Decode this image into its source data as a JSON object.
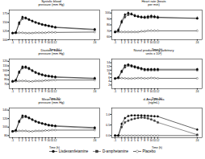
{
  "chart_data": [
    {
      "type": "line",
      "ylabel": "Systolic blood\npressure (mm Hg)",
      "xlabel": "Time (h)",
      "x": [
        -1,
        0,
        1,
        2,
        3,
        4,
        5,
        6,
        7,
        8,
        9,
        10,
        11,
        12,
        24
      ],
      "xlim": [
        -2,
        25.5
      ],
      "xticks": [
        -1,
        1,
        2,
        3,
        4,
        5,
        6,
        7,
        8,
        9,
        10,
        11,
        12,
        24
      ],
      "ylim": [
        100,
        185
      ],
      "yticks": [
        100,
        125,
        150,
        175
      ],
      "grid": false,
      "legend": "bottom",
      "series": [
        {
          "name": "Lisdexamfetamine",
          "color": "#000000",
          "marker": "circle",
          "line_style": "solid",
          "values": [
            119,
            120,
            149,
            165,
            163,
            158,
            154,
            150,
            147,
            144,
            142,
            140,
            138,
            136,
            130
          ],
          "yerr": 2.5
        },
        {
          "name": "D-amphetamine",
          "color": "#444444",
          "marker": "square",
          "line_style": "solid",
          "values": [
            119,
            121,
            145,
            160,
            161,
            157,
            153,
            149,
            146,
            143,
            141,
            139,
            137,
            135,
            128
          ],
          "yerr": 2.5
        },
        {
          "name": "Placebo",
          "color": "#000000",
          "marker": "open_circle",
          "line_style": "solid",
          "values": [
            119,
            119,
            120,
            120,
            119,
            119,
            119,
            120,
            120,
            120,
            120,
            121,
            121,
            121,
            122
          ],
          "yerr": 1.5
        }
      ]
    },
    {
      "type": "line",
      "ylabel": "Heart rate (beats\nper min)",
      "xlabel": "Time (h)",
      "x": [
        -1,
        0,
        1,
        2,
        3,
        4,
        5,
        6,
        7,
        8,
        9,
        10,
        11,
        12,
        24
      ],
      "xlim": [
        -2,
        25.5
      ],
      "xticks": [
        -1,
        1,
        2,
        3,
        4,
        5,
        6,
        7,
        8,
        9,
        10,
        11,
        12,
        24
      ],
      "ylim": [
        55,
        105
      ],
      "yticks": [
        60,
        70,
        80,
        90,
        100
      ],
      "grid": false,
      "legend": "bottom",
      "series": [
        {
          "name": "Lisdexamfetamine",
          "color": "#000000",
          "marker": "circle",
          "line_style": "solid",
          "values": [
            68,
            70,
            86,
            97,
            100,
            98,
            95,
            94,
            93,
            93,
            94,
            95,
            94,
            93,
            91
          ],
          "yerr": 2.5
        },
        {
          "name": "D-amphetamine",
          "color": "#444444",
          "marker": "square",
          "line_style": "solid",
          "values": [
            68,
            72,
            84,
            93,
            97,
            98,
            96,
            94,
            93,
            92,
            92,
            93,
            93,
            92,
            91
          ],
          "yerr": 2.5
        },
        {
          "name": "Placebo",
          "color": "#000000",
          "marker": "open_circle",
          "line_style": "solid",
          "values": [
            68,
            68,
            68,
            68,
            68,
            68,
            68,
            68,
            69,
            69,
            70,
            70,
            70,
            70,
            70
          ],
          "yerr": 1.5
        }
      ]
    },
    {
      "type": "line",
      "ylabel": "Diastolic blood\npressure (mm Hg)",
      "xlabel": "Time (h)",
      "x": [
        -1,
        0,
        1,
        2,
        3,
        4,
        5,
        6,
        7,
        8,
        9,
        10,
        11,
        12,
        24
      ],
      "xlim": [
        -2,
        25.5
      ],
      "xticks": [
        -1,
        1,
        2,
        3,
        4,
        5,
        6,
        7,
        8,
        9,
        10,
        11,
        12,
        24
      ],
      "ylim": [
        60,
        125
      ],
      "yticks": [
        70,
        80,
        90,
        100,
        110,
        120
      ],
      "grid": false,
      "legend": "bottom",
      "series": [
        {
          "name": "Lisdexamfetamine",
          "color": "#000000",
          "marker": "circle",
          "line_style": "solid",
          "values": [
            76,
            78,
            97,
            108,
            108,
            105,
            100,
            96,
            93,
            91,
            89,
            88,
            87,
            86,
            83
          ],
          "yerr": 2.5
        },
        {
          "name": "D-amphetamine",
          "color": "#444444",
          "marker": "square",
          "line_style": "solid",
          "values": [
            76,
            79,
            95,
            105,
            106,
            103,
            99,
            95,
            92,
            90,
            88,
            87,
            86,
            85,
            82
          ],
          "yerr": 2.5
        },
        {
          "name": "Placebo",
          "color": "#000000",
          "marker": "open_circle",
          "line_style": "solid",
          "values": [
            76,
            76,
            77,
            77,
            77,
            76,
            76,
            77,
            77,
            77,
            78,
            78,
            79,
            79,
            79
          ],
          "yerr": 1.5
        }
      ]
    },
    {
      "type": "line",
      "ylabel": "Nasal productively (arbitrary\nunits x 10²)",
      "xlabel": "Time (h)",
      "x": [
        -1,
        0,
        1,
        2,
        3,
        4,
        5,
        6,
        7,
        8,
        9,
        10,
        11,
        12,
        24
      ],
      "xlim": [
        -2,
        25.5
      ],
      "xticks": [
        -1,
        1,
        2,
        3,
        4,
        5,
        6,
        7,
        8,
        9,
        10,
        11,
        12,
        24
      ],
      "ylim": [
        0,
        16
      ],
      "yticks": [
        2,
        4,
        6,
        8,
        10,
        12,
        14
      ],
      "grid": false,
      "legend": "bottom",
      "series": [
        {
          "name": "Lisdexamfetamine",
          "color": "#000000",
          "marker": "circle",
          "line_style": "solid",
          "values": [
            5.5,
            6.0,
            9.5,
            12.5,
            13.0,
            12.5,
            12.0,
            11.5,
            11.0,
            10.5,
            10.5,
            10.5,
            10.5,
            10.5,
            10.5
          ],
          "yerr": 0.5
        },
        {
          "name": "D-amphetamine",
          "color": "#444444",
          "marker": "square",
          "line_style": "solid",
          "values": [
            5.5,
            6.0,
            9.0,
            11.5,
            12.5,
            12.0,
            11.5,
            11.0,
            10.5,
            10.0,
            10.0,
            10.0,
            10.0,
            10.0,
            10.0
          ],
          "yerr": 0.5
        },
        {
          "name": "Placebo",
          "color": "#000000",
          "marker": "open_circle",
          "line_style": "solid",
          "values": [
            5.5,
            5.6,
            5.7,
            5.6,
            5.5,
            5.5,
            5.6,
            5.7,
            5.7,
            5.6,
            5.6,
            5.8,
            5.7,
            5.6,
            5.6
          ],
          "yerr": 0.3
        }
      ]
    },
    {
      "type": "line",
      "ylabel": "Mean arterial\npressure (mm Hg)",
      "xlabel": "Time (h)",
      "x": [
        -1,
        0,
        1,
        2,
        3,
        4,
        5,
        6,
        7,
        8,
        9,
        10,
        11,
        12,
        24
      ],
      "xlim": [
        -2,
        25.5
      ],
      "xticks": [
        -1,
        1,
        2,
        3,
        4,
        5,
        6,
        7,
        8,
        9,
        10,
        11,
        12,
        24
      ],
      "ylim": [
        75,
        145
      ],
      "yticks": [
        80,
        100,
        120,
        140
      ],
      "grid": false,
      "legend": "bottom",
      "series": [
        {
          "name": "Lisdexamfetamine",
          "color": "#000000",
          "marker": "circle",
          "line_style": "solid",
          "values": [
            90,
            92,
            114,
            127,
            126,
            122,
            118,
            114,
            111,
            109,
            107,
            105,
            104,
            103,
            99
          ],
          "yerr": 2.0
        },
        {
          "name": "D-amphetamine",
          "color": "#444444",
          "marker": "square",
          "line_style": "solid",
          "values": [
            90,
            93,
            112,
            123,
            124,
            121,
            117,
            113,
            110,
            108,
            106,
            104,
            103,
            102,
            97
          ],
          "yerr": 2.0
        },
        {
          "name": "Placebo",
          "color": "#000000",
          "marker": "open_circle",
          "line_style": "solid",
          "values": [
            90,
            90,
            91,
            91,
            91,
            90,
            90,
            91,
            91,
            91,
            92,
            92,
            93,
            93,
            93
          ],
          "yerr": 1.5
        }
      ]
    },
    {
      "type": "line",
      "ylabel": "d-Amp plasma\n(ng/mL)",
      "xlabel": "Time (h)",
      "x": [
        -1,
        0,
        1,
        2,
        3,
        4,
        5,
        6,
        7,
        8,
        9,
        10,
        11,
        12,
        24
      ],
      "xlim": [
        -2,
        25.5
      ],
      "xticks": [
        -1,
        1,
        2,
        3,
        4,
        5,
        6,
        7,
        8,
        9,
        10,
        11,
        12,
        24
      ],
      "ylim": [
        -0.1,
        1.3
      ],
      "yticks": [
        {
          "value": 0,
          "label": "0.0"
        },
        0.5,
        {
          "value": 1,
          "label": "1.0"
        }
      ],
      "grid": false,
      "legend": "bottom",
      "series": [
        {
          "name": "Lisdexamfetamine",
          "color": "#000000",
          "marker": "circle",
          "line_style": "solid",
          "values": [
            0.0,
            0.0,
            0.55,
            0.82,
            0.92,
            0.95,
            0.95,
            0.95,
            0.95,
            0.94,
            0.93,
            0.92,
            0.91,
            0.9,
            0.28
          ],
          "yerr": 0.05
        },
        {
          "name": "D-amphetamine",
          "color": "#444444",
          "marker": "square",
          "line_style": "solid",
          "values": [
            0.0,
            0.0,
            0.4,
            0.62,
            0.7,
            0.76,
            0.8,
            0.83,
            0.85,
            0.84,
            0.81,
            0.76,
            0.7,
            0.62,
            0.04
          ],
          "yerr": 0.05
        },
        {
          "name": "Placebo",
          "color": "#000000",
          "marker": "open_circle",
          "line_style": "solid",
          "values": [
            0.0,
            0.0,
            0.0,
            0.0,
            0.0,
            0.0,
            0.0,
            0.0,
            0.0,
            0.0,
            0.0,
            0.0,
            0.0,
            0.0,
            0.0
          ],
          "yerr": 0.01
        }
      ]
    }
  ]
}
